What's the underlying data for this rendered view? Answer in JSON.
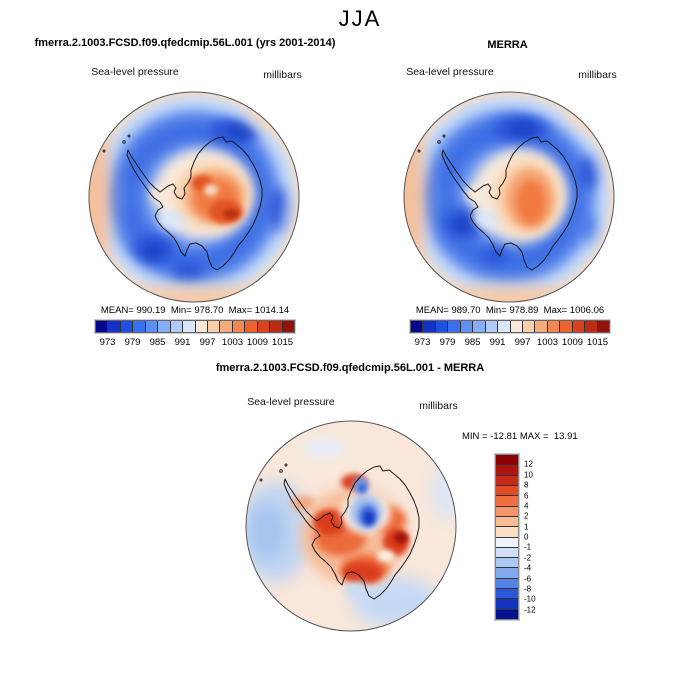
{
  "figure": {
    "season_title": "JJA"
  },
  "labels": {
    "field": "Sea-level pressure",
    "units": "millibars"
  },
  "panels": {
    "model": {
      "title": "fmerra.2.1003.FCSD.f09.qfedcmip.56L.001 (yrs 2001-2014)",
      "stats": "MEAN= 990.19  Min= 978.70  Max= 1014.14"
    },
    "reference": {
      "title": "MERRA",
      "stats": "MEAN= 989.70  Min= 978.89  Max= 1006.06"
    },
    "difference": {
      "title": "fmerra.2.1003.FCSD.f09.qfedcmip.56L.001 - MERRA",
      "stats": "MIN = -12.81 MAX =  13.91"
    }
  },
  "pressure_colorbar": {
    "orientation": "horizontal",
    "tick_labels": [
      "973",
      "979",
      "985",
      "991",
      "997",
      "1003",
      "1009",
      "1015"
    ],
    "colors": [
      "#05058F",
      "#1331C8",
      "#1D4FE4",
      "#3A70F0",
      "#5E90F4",
      "#86AEF7",
      "#AFCBF8",
      "#D9E6F8",
      "#FAE9D8",
      "#F9CFAA",
      "#F5AC7C",
      "#F18851",
      "#EA642F",
      "#D8421E",
      "#BB2A12",
      "#93120B"
    ]
  },
  "difference_colorbar": {
    "orientation": "vertical",
    "tick_labels": [
      "12",
      "10",
      "8",
      "6",
      "4",
      "2",
      "1",
      "0",
      "-1",
      "-2",
      "-4",
      "-6",
      "-8",
      "-10",
      "-12"
    ],
    "colors": [
      "#8B0000",
      "#AC140D",
      "#C92817",
      "#E04A26",
      "#EF6E3E",
      "#F59468",
      "#F9BD96",
      "#FBDFC5",
      "#EDF2FB",
      "#CEDFF7",
      "#ABC8F3",
      "#82A8ED",
      "#5682E5",
      "#2C58D8",
      "#1334C0",
      "#04128F"
    ]
  },
  "chart_data": [
    {
      "type": "heatmap",
      "subtype": "polar-stereographic-contour-map",
      "region": "Antarctica / Southern Hemisphere",
      "season": "JJA",
      "title": "fmerra.2.1003.FCSD.f09.qfedcmip.56L.001 (yrs 2001-2014)",
      "variable": "Sea-level pressure",
      "units": "millibars",
      "stats": {
        "mean": 990.19,
        "min": 978.7,
        "max": 1014.14
      },
      "contour_levels": [
        970,
        973,
        976,
        979,
        982,
        985,
        988,
        991,
        994,
        997,
        1000,
        1003,
        1006,
        1009,
        1012,
        1015,
        1018
      ],
      "labeled_ticks": [
        973,
        979,
        985,
        991,
        997,
        1003,
        1009,
        1015
      ],
      "legend_position": "bottom",
      "palette": "blue-to-red diverging, 16 classes"
    },
    {
      "type": "heatmap",
      "subtype": "polar-stereographic-contour-map",
      "region": "Antarctica / Southern Hemisphere",
      "season": "JJA",
      "title": "MERRA",
      "variable": "Sea-level pressure",
      "units": "millibars",
      "stats": {
        "mean": 989.7,
        "min": 978.89,
        "max": 1006.06
      },
      "contour_levels": [
        970,
        973,
        976,
        979,
        982,
        985,
        988,
        991,
        994,
        997,
        1000,
        1003,
        1006,
        1009,
        1012,
        1015,
        1018
      ],
      "labeled_ticks": [
        973,
        979,
        985,
        991,
        997,
        1003,
        1009,
        1015
      ],
      "legend_position": "bottom",
      "palette": "blue-to-red diverging, 16 classes"
    },
    {
      "type": "heatmap",
      "subtype": "polar-stereographic-contour-map (difference)",
      "region": "Antarctica / Southern Hemisphere",
      "season": "JJA",
      "title": "fmerra.2.1003.FCSD.f09.qfedcmip.56L.001 - MERRA",
      "variable": "Sea-level pressure difference",
      "units": "millibars",
      "stats": {
        "min": -12.81,
        "max": 13.91
      },
      "contour_levels": [
        -12,
        -10,
        -8,
        -6,
        -4,
        -2,
        -1,
        0,
        1,
        2,
        4,
        6,
        8,
        10,
        12
      ],
      "legend_position": "right",
      "palette": "blue-to-red diverging, 16 classes"
    }
  ]
}
